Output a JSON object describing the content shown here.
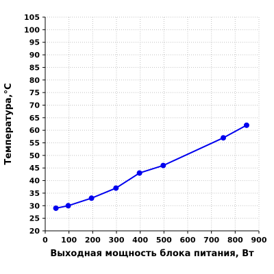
{
  "chart_data": {
    "type": "line",
    "title": "",
    "xlabel": "Выходная мощность блока питания, Вт",
    "ylabel": "Температура,°С",
    "xlim": [
      0,
      900
    ],
    "ylim": [
      20,
      105
    ],
    "x_ticks": [
      "0",
      "100",
      "200",
      "300",
      "400",
      "500",
      "600",
      "700",
      "800",
      "900"
    ],
    "y_ticks": [
      "20",
      "25",
      "30",
      "35",
      "40",
      "45",
      "50",
      "55",
      "60",
      "65",
      "70",
      "75",
      "80",
      "85",
      "90",
      "95",
      "100",
      "105"
    ],
    "grid": true,
    "series": [
      {
        "x": [
          45,
          97,
          195,
          298,
          397,
          497,
          750,
          848
        ],
        "y": [
          29,
          30,
          33,
          37,
          43,
          46,
          57,
          62
        ]
      }
    ],
    "colors": {
      "series": "#0000ee",
      "grid": "#c0c0c0",
      "axis": "#000000"
    }
  }
}
